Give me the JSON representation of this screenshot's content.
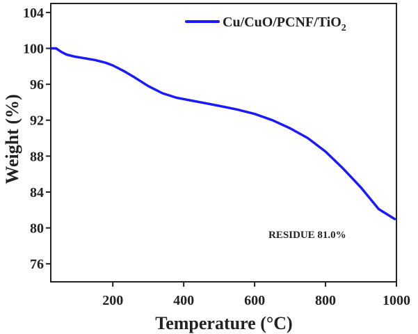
{
  "chart_data": {
    "type": "line",
    "title": "",
    "xlabel": "Temperature (°C)",
    "ylabel": "Weight (%)",
    "xlim": [
      25,
      1000
    ],
    "ylim": [
      74,
      105
    ],
    "x_ticks": [
      200,
      400,
      600,
      800,
      1000
    ],
    "y_ticks": [
      76,
      80,
      84,
      88,
      92,
      96,
      100,
      104
    ],
    "grid": false,
    "legend_position": "top-right",
    "annotation": "RESIDUE 81.0%",
    "series": [
      {
        "name": "Cu/CuO/PCNF/TiO",
        "name_subscript": "2",
        "color": "#1a1aff",
        "x": [
          25,
          40,
          55,
          70,
          90,
          120,
          150,
          180,
          200,
          230,
          260,
          300,
          340,
          380,
          420,
          460,
          500,
          550,
          600,
          650,
          700,
          750,
          800,
          850,
          900,
          950,
          995
        ],
        "y": [
          100.0,
          100.0,
          99.6,
          99.3,
          99.1,
          98.9,
          98.7,
          98.4,
          98.1,
          97.5,
          96.8,
          95.8,
          95.0,
          94.5,
          94.2,
          93.9,
          93.6,
          93.2,
          92.7,
          92.0,
          91.1,
          90.0,
          88.5,
          86.6,
          84.5,
          82.1,
          81.0
        ]
      }
    ]
  }
}
